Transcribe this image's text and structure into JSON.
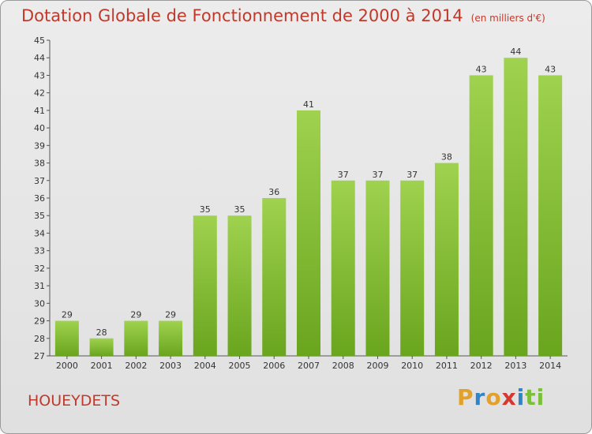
{
  "header": {
    "title": "Dotation Globale de Fonctionnement de 2000 à 2014",
    "subtitle": "(en milliers d'€)"
  },
  "footer": {
    "commune": "HOUEYDETS",
    "logo_letters": [
      "P",
      "r",
      "o",
      "x",
      "i",
      "ti"
    ]
  },
  "chart_data": {
    "type": "bar",
    "categories": [
      "2000",
      "2001",
      "2002",
      "2003",
      "2004",
      "2005",
      "2006",
      "2007",
      "2008",
      "2009",
      "2010",
      "2011",
      "2012",
      "2013",
      "2014"
    ],
    "values": [
      29,
      28,
      29,
      29,
      35,
      35,
      36,
      41,
      37,
      37,
      37,
      38,
      43,
      44,
      43
    ],
    "title": "Dotation Globale de Fonctionnement de 2000 à 2014",
    "subtitle": "(en milliers d'€)",
    "ylim": [
      27,
      45
    ],
    "ytick_step": 1,
    "grid": false,
    "data_labels": true,
    "bar_color_top": "#9fd24e",
    "bar_color_bottom": "#6aa51e"
  }
}
